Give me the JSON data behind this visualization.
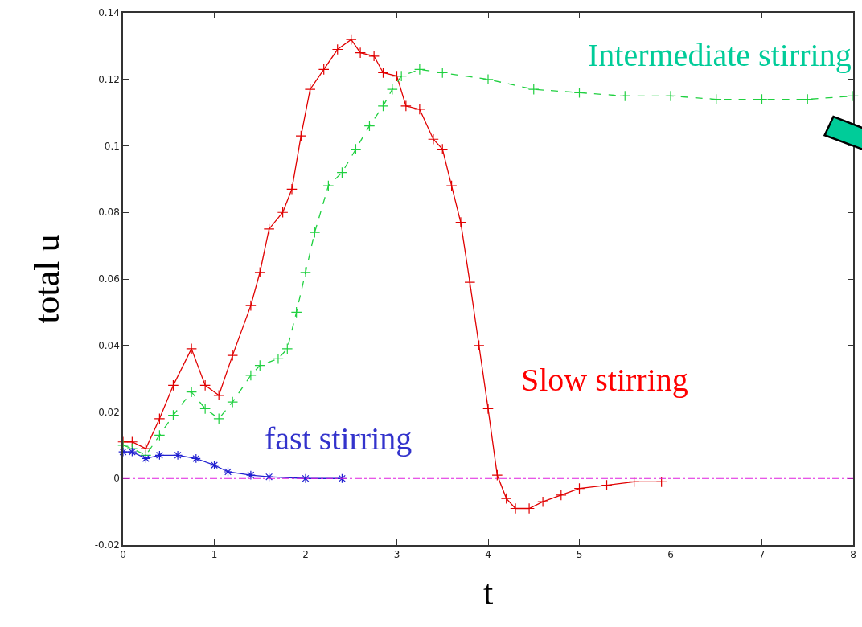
{
  "chart_data": {
    "type": "line",
    "xlabel": "t",
    "ylabel": "total u",
    "xlim": [
      0,
      8
    ],
    "xticks": [
      0,
      1,
      2,
      3,
      4,
      5,
      6,
      7,
      8
    ],
    "ylim": [
      -0.02,
      0.14
    ],
    "yticks": [
      -0.02,
      0,
      0.02,
      0.04,
      0.06,
      0.08,
      0.1,
      0.12,
      0.14
    ],
    "legend": false,
    "ref_lines": [
      {
        "axis": "y",
        "value": 0,
        "color": "#e020e0",
        "line_style": "dashed"
      }
    ],
    "series": [
      {
        "name": "Slow stirring",
        "color": "#e00000",
        "marker": "cross",
        "line_style": "solid",
        "x": [
          0,
          0.1,
          0.25,
          0.4,
          0.55,
          0.75,
          0.9,
          1.05,
          1.2,
          1.4,
          1.5,
          1.6,
          1.75,
          1.85,
          1.95,
          2.05,
          2.2,
          2.35,
          2.5,
          2.6,
          2.75,
          2.85,
          3.0,
          3.1,
          3.25,
          3.4,
          3.5,
          3.6,
          3.7,
          3.8,
          3.9,
          4.0,
          4.1,
          4.2,
          4.3,
          4.45,
          4.6,
          4.8,
          5.0,
          5.3,
          5.6,
          5.9
        ],
        "values": [
          0.011,
          0.011,
          0.009,
          0.018,
          0.028,
          0.039,
          0.028,
          0.025,
          0.037,
          0.052,
          0.062,
          0.075,
          0.08,
          0.087,
          0.103,
          0.117,
          0.123,
          0.129,
          0.132,
          0.128,
          0.127,
          0.122,
          0.121,
          0.112,
          0.111,
          0.102,
          0.099,
          0.088,
          0.077,
          0.059,
          0.04,
          0.021,
          0.001,
          -0.006,
          -0.009,
          -0.009,
          -0.007,
          -0.005,
          -0.003,
          -0.002,
          -0.001,
          -0.001
        ]
      },
      {
        "name": "Intermediate stirring",
        "color": "#20d040",
        "marker": "cross",
        "line_style": "dashed",
        "x": [
          0,
          0.1,
          0.25,
          0.4,
          0.55,
          0.75,
          0.9,
          1.05,
          1.2,
          1.4,
          1.5,
          1.7,
          1.8,
          1.9,
          2.0,
          2.1,
          2.25,
          2.4,
          2.55,
          2.7,
          2.85,
          2.95,
          3.05,
          3.25,
          3.5,
          4.0,
          4.5,
          5.0,
          5.5,
          6.0,
          6.5,
          7.0,
          7.5,
          8.0
        ],
        "values": [
          0.01,
          0.009,
          0.007,
          0.013,
          0.019,
          0.026,
          0.021,
          0.018,
          0.023,
          0.031,
          0.034,
          0.036,
          0.039,
          0.05,
          0.062,
          0.074,
          0.088,
          0.092,
          0.099,
          0.106,
          0.112,
          0.117,
          0.121,
          0.123,
          0.122,
          0.12,
          0.117,
          0.116,
          0.115,
          0.115,
          0.114,
          0.114,
          0.114,
          0.115
        ]
      },
      {
        "name": "fast stirring",
        "color": "#2020d0",
        "marker": "cross",
        "line_style": "solid",
        "x": [
          0,
          0.1,
          0.25,
          0.4,
          0.6,
          0.8,
          1.0,
          1.15,
          1.4,
          1.6,
          2.0,
          2.4
        ],
        "values": [
          0.008,
          0.008,
          0.006,
          0.007,
          0.007,
          0.006,
          0.004,
          0.002,
          0.001,
          0.0005,
          0,
          0
        ]
      }
    ]
  }
}
